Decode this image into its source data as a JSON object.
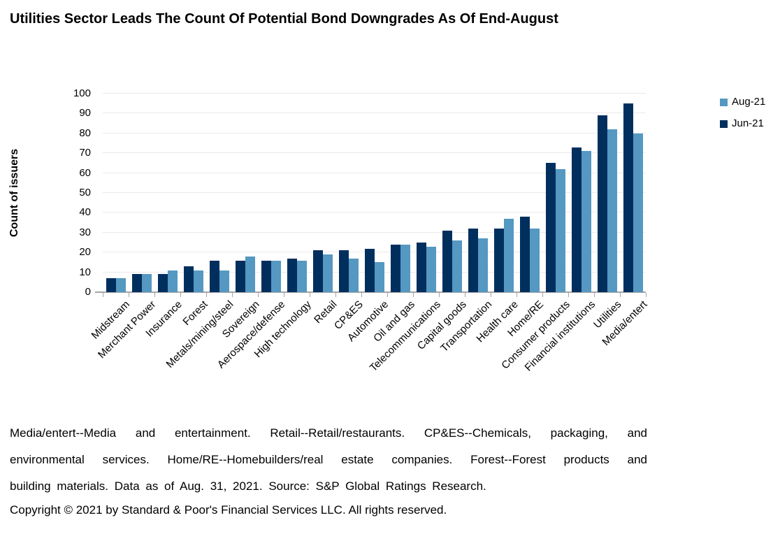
{
  "title": "Utilities Sector Leads The Count Of Potential Bond Downgrades As Of End-August",
  "legend": {
    "items": [
      {
        "label": "Aug-21",
        "color": "#5598C1"
      },
      {
        "label": "Jun-21",
        "color": "#002F5E"
      }
    ]
  },
  "footnote": {
    "lines": [
      "Media/entert--Media and entertainment. Retail--Retail/restaurants. CP&ES--Chemicals, packaging, and",
      "environmental services. Home/RE--Homebuilders/real estate companies. Forest--Forest products and",
      "building materials. Data as of Aug. 31, 2021. Source: S&P Global Ratings Research.",
      "Copyright © 2021 by Standard & Poor's Financial Services LLC. All rights reserved."
    ]
  },
  "chart_data": {
    "type": "bar",
    "title": "Utilities Sector Leads The Count Of Potential Bond Downgrades As Of End-August",
    "xlabel": "",
    "ylabel": "Count of issuers",
    "ylim": [
      0,
      100
    ],
    "ytick_step": 10,
    "grid": true,
    "legend_position": "top-right",
    "categories": [
      "Midstream",
      "Merchant Power",
      "Insurance",
      "Forest",
      "Metals/mining/steel",
      "Sovereign",
      "Aerospace/defense",
      "High technology",
      "Retail",
      "CP&ES",
      "Automotive",
      "Oil and gas",
      "Telecommunications",
      "Capital goods",
      "Transportation",
      "Health care",
      "Home/RE",
      "Consumer products",
      "Financial institutions",
      "Utilities",
      "Media/entert"
    ],
    "series": [
      {
        "name": "Aug-21",
        "color": "#5598C1",
        "values": [
          7,
          9,
          11,
          11,
          11,
          18,
          16,
          16,
          19,
          17,
          15,
          24,
          23,
          26,
          27,
          37,
          32,
          62,
          71,
          82,
          80
        ]
      },
      {
        "name": "Jun-21",
        "color": "#002F5E",
        "values": [
          7,
          9,
          9,
          13,
          16,
          16,
          16,
          17,
          21,
          21,
          22,
          24,
          25,
          31,
          32,
          32,
          38,
          65,
          73,
          89,
          95
        ]
      }
    ],
    "draw_order": [
      "Jun-21",
      "Aug-21"
    ],
    "colors": {
      "gridline": "#E9E9E9",
      "axis": "#A6A6A6",
      "text": "#000000"
    }
  }
}
